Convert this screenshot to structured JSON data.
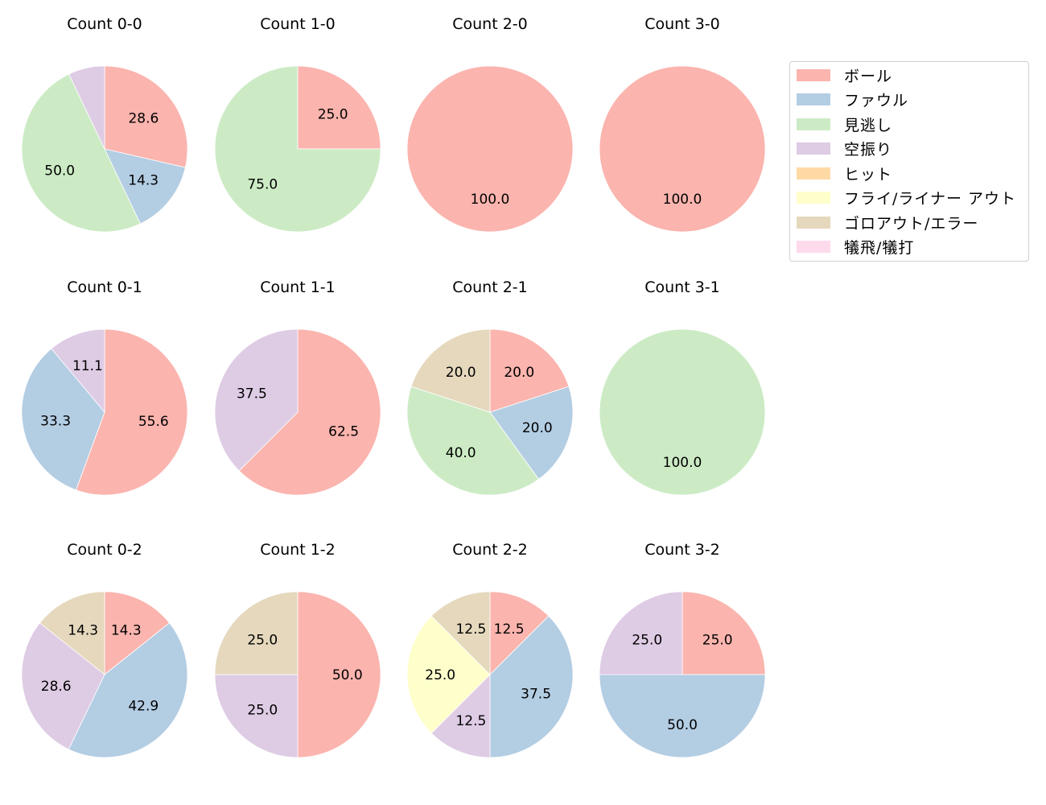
{
  "legend": {
    "items": [
      {
        "label": "ボール",
        "color": "#fbb4ae"
      },
      {
        "label": "ファウル",
        "color": "#b3cde3"
      },
      {
        "label": "見逃し",
        "color": "#ccebc5"
      },
      {
        "label": "空振り",
        "color": "#decbe4"
      },
      {
        "label": "ヒット",
        "color": "#fed9a6"
      },
      {
        "label": "フライ/ライナー アウト",
        "color": "#ffffcc"
      },
      {
        "label": "ゴロアウト/エラー",
        "color": "#e5d8bd"
      },
      {
        "label": "犠飛/犠打",
        "color": "#fddaec"
      }
    ]
  },
  "chart_data": {
    "type": "pie",
    "title": "",
    "layout": {
      "rows": 3,
      "cols": 4,
      "start_angle": 90,
      "counterclock": false,
      "legend_position": "upper right"
    },
    "categories": [
      "ボール",
      "ファウル",
      "見逃し",
      "空振り",
      "ヒット",
      "フライ/ライナー アウト",
      "ゴロアウト/エラー",
      "犠飛/犠打"
    ],
    "colors": [
      "#fbb4ae",
      "#b3cde3",
      "#ccebc5",
      "#decbe4",
      "#fed9a6",
      "#ffffcc",
      "#e5d8bd",
      "#fddaec"
    ],
    "charts": [
      {
        "title": "Count 0-0",
        "row": 0,
        "col": 0,
        "slices": [
          {
            "category": "ボール",
            "value": 28.6,
            "label": "28.6"
          },
          {
            "category": "ファウル",
            "value": 14.3,
            "label": "14.3"
          },
          {
            "category": "見逃し",
            "value": 50.0,
            "label": "50.0"
          },
          {
            "category": "空振り",
            "value": 7.1,
            "label": ""
          }
        ]
      },
      {
        "title": "Count 1-0",
        "row": 0,
        "col": 1,
        "slices": [
          {
            "category": "ボール",
            "value": 25.0,
            "label": "25.0"
          },
          {
            "category": "見逃し",
            "value": 75.0,
            "label": "75.0"
          }
        ]
      },
      {
        "title": "Count 2-0",
        "row": 0,
        "col": 2,
        "slices": [
          {
            "category": "ボール",
            "value": 100.0,
            "label": "100.0"
          }
        ]
      },
      {
        "title": "Count 3-0",
        "row": 0,
        "col": 3,
        "slices": [
          {
            "category": "ボール",
            "value": 100.0,
            "label": "100.0"
          }
        ]
      },
      {
        "title": "Count 0-1",
        "row": 1,
        "col": 0,
        "slices": [
          {
            "category": "ボール",
            "value": 55.6,
            "label": "55.6"
          },
          {
            "category": "ファウル",
            "value": 33.3,
            "label": "33.3"
          },
          {
            "category": "空振り",
            "value": 11.1,
            "label": "11.1"
          }
        ]
      },
      {
        "title": "Count 1-1",
        "row": 1,
        "col": 1,
        "slices": [
          {
            "category": "ボール",
            "value": 62.5,
            "label": "62.5"
          },
          {
            "category": "空振り",
            "value": 37.5,
            "label": "37.5"
          }
        ]
      },
      {
        "title": "Count 2-1",
        "row": 1,
        "col": 2,
        "slices": [
          {
            "category": "ボール",
            "value": 20.0,
            "label": "20.0"
          },
          {
            "category": "ファウル",
            "value": 20.0,
            "label": "20.0"
          },
          {
            "category": "見逃し",
            "value": 40.0,
            "label": "40.0"
          },
          {
            "category": "ゴロアウト/エラー",
            "value": 20.0,
            "label": "20.0"
          }
        ]
      },
      {
        "title": "Count 3-1",
        "row": 1,
        "col": 3,
        "slices": [
          {
            "category": "見逃し",
            "value": 100.0,
            "label": "100.0"
          }
        ]
      },
      {
        "title": "Count 0-2",
        "row": 2,
        "col": 0,
        "slices": [
          {
            "category": "ボール",
            "value": 14.3,
            "label": "14.3"
          },
          {
            "category": "ファウル",
            "value": 42.9,
            "label": "42.9"
          },
          {
            "category": "空振り",
            "value": 28.6,
            "label": "28.6"
          },
          {
            "category": "ゴロアウト/エラー",
            "value": 14.3,
            "label": "14.3"
          }
        ]
      },
      {
        "title": "Count 1-2",
        "row": 2,
        "col": 1,
        "slices": [
          {
            "category": "ボール",
            "value": 50.0,
            "label": "50.0"
          },
          {
            "category": "空振り",
            "value": 25.0,
            "label": "25.0"
          },
          {
            "category": "ゴロアウト/エラー",
            "value": 25.0,
            "label": "25.0"
          }
        ]
      },
      {
        "title": "Count 2-2",
        "row": 2,
        "col": 2,
        "slices": [
          {
            "category": "ボール",
            "value": 12.5,
            "label": "12.5"
          },
          {
            "category": "ファウル",
            "value": 37.5,
            "label": "37.5"
          },
          {
            "category": "空振り",
            "value": 12.5,
            "label": "12.5"
          },
          {
            "category": "フライ/ライナー アウト",
            "value": 25.0,
            "label": "25.0"
          },
          {
            "category": "ゴロアウト/エラー",
            "value": 12.5,
            "label": "12.5"
          }
        ]
      },
      {
        "title": "Count 3-2",
        "row": 2,
        "col": 3,
        "slices": [
          {
            "category": "ボール",
            "value": 25.0,
            "label": "25.0"
          },
          {
            "category": "ファウル",
            "value": 50.0,
            "label": "50.0"
          },
          {
            "category": "空振り",
            "value": 25.0,
            "label": "25.0"
          }
        ]
      }
    ]
  }
}
